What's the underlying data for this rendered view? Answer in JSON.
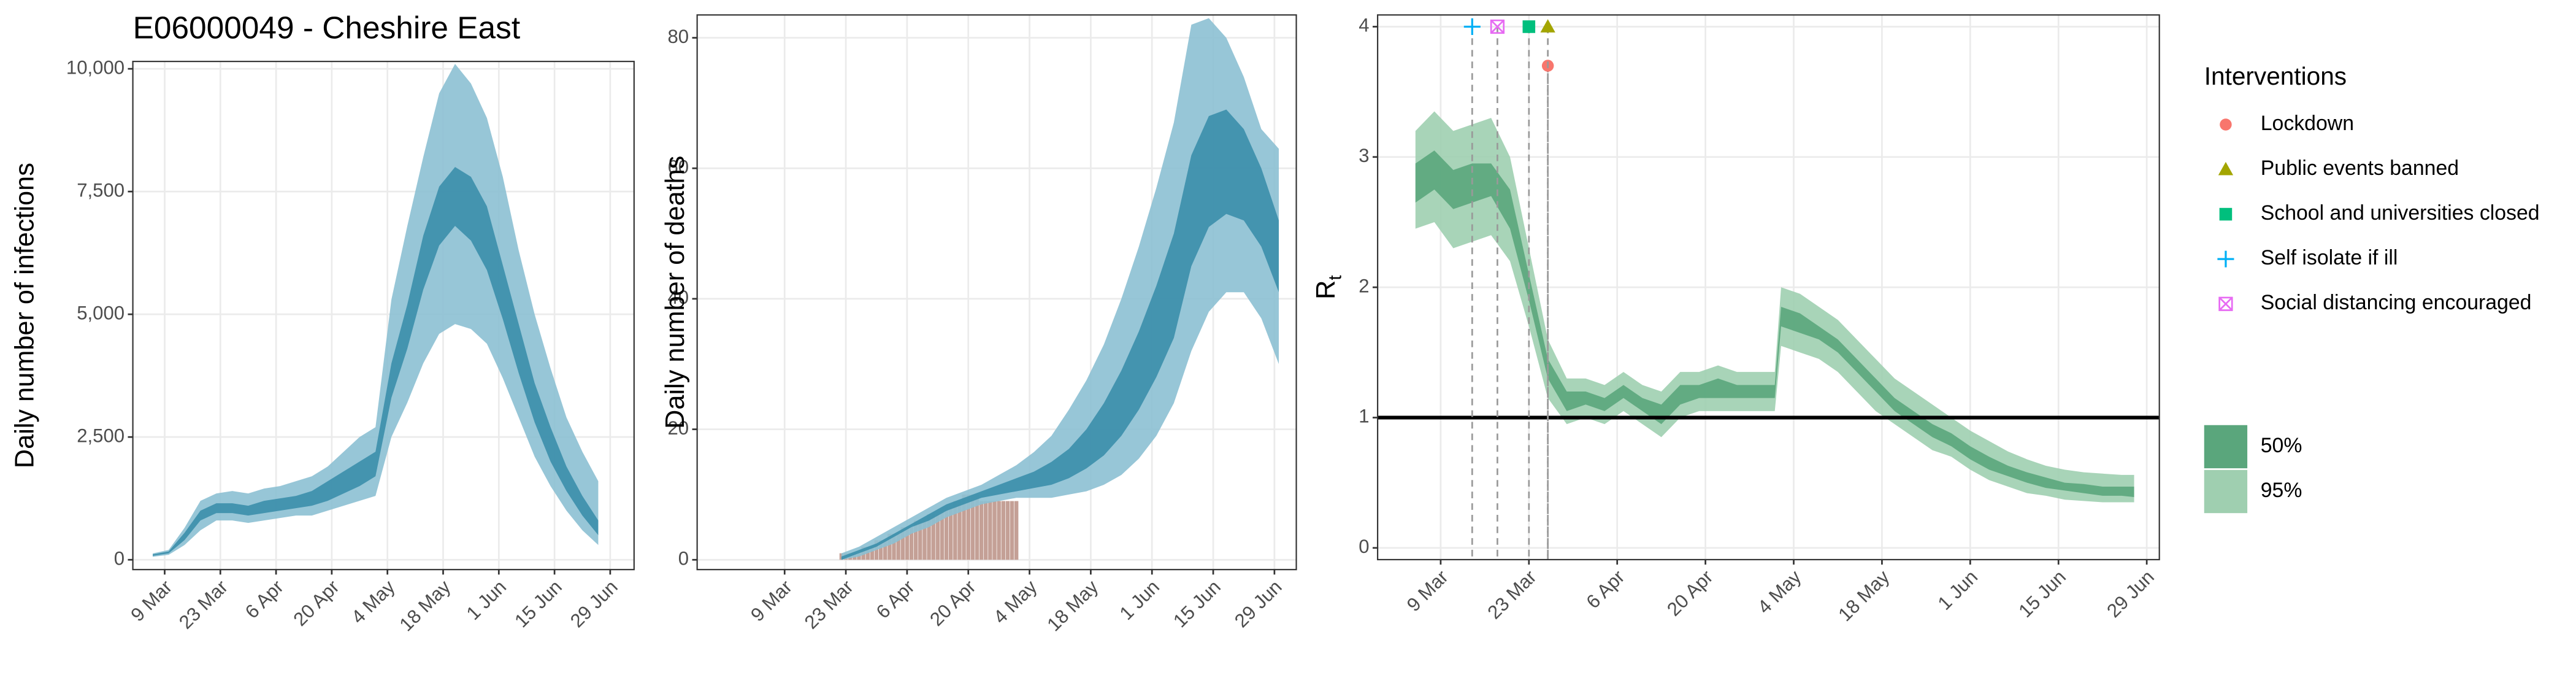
{
  "chart_data": [
    {
      "type": "ribbon",
      "title": "E06000049 - Cheshire East",
      "ylabel": "Daily number of infections",
      "x": [
        "6 Mar",
        "10 Mar",
        "14 Mar",
        "18 Mar",
        "22 Mar",
        "26 Mar",
        "30 Mar",
        "3 Apr",
        "7 Apr",
        "11 Apr",
        "15 Apr",
        "19 Apr",
        "23 Apr",
        "27 Apr",
        "1 May",
        "5 May",
        "9 May",
        "13 May",
        "17 May",
        "21 May",
        "25 May",
        "29 May",
        "2 Jun",
        "6 Jun",
        "10 Jun",
        "14 Jun",
        "18 Jun",
        "22 Jun",
        "26 Jun"
      ],
      "series": [
        {
          "color": "#8cc0d3",
          "lower": [
            60,
            100,
            300,
            600,
            800,
            800,
            750,
            800,
            850,
            900,
            900,
            1000,
            1100,
            1200,
            1300,
            2500,
            3200,
            4000,
            4600,
            4800,
            4700,
            4400,
            3700,
            2900,
            2100,
            1500,
            1000,
            600,
            300
          ],
          "upper": [
            130,
            200,
            650,
            1200,
            1350,
            1400,
            1350,
            1450,
            1500,
            1600,
            1700,
            1900,
            2200,
            2500,
            2700,
            5300,
            6800,
            8200,
            9500,
            10100,
            9700,
            9000,
            7800,
            6300,
            5000,
            3900,
            2900,
            2200,
            1600
          ]
        },
        {
          "color": "#3b8eab",
          "lower": [
            80,
            130,
            400,
            800,
            950,
            950,
            900,
            950,
            1000,
            1050,
            1100,
            1200,
            1350,
            1500,
            1700,
            3300,
            4300,
            5500,
            6400,
            6800,
            6500,
            5900,
            4900,
            3800,
            2800,
            2000,
            1400,
            900,
            500
          ],
          "upper": [
            110,
            170,
            550,
            1000,
            1150,
            1150,
            1100,
            1200,
            1250,
            1300,
            1400,
            1600,
            1800,
            2000,
            2200,
            4000,
            5200,
            6600,
            7600,
            8000,
            7800,
            7200,
            6000,
            4800,
            3600,
            2700,
            1900,
            1300,
            800
          ]
        }
      ],
      "xlim": [
        "1 Mar",
        "5 Jul"
      ],
      "xticks": [
        "9 Mar",
        "23 Mar",
        "6 Apr",
        "20 Apr",
        "4 May",
        "18 May",
        "1 Jun",
        "15 Jun",
        "29 Jun"
      ],
      "ylim": [
        -200,
        10150
      ],
      "yticks": [
        0,
        {
          "value": 2500,
          "label": "2,500"
        },
        {
          "value": 5000,
          "label": "5,000"
        },
        {
          "value": 7500,
          "label": "7,500"
        },
        {
          "value": 10000,
          "label": "10,000"
        }
      ],
      "grid": true
    },
    {
      "type": "ribbon",
      "ylabel": "Daily number of deaths",
      "x": [
        "22 Mar",
        "26 Mar",
        "30 Mar",
        "3 Apr",
        "7 Apr",
        "11 Apr",
        "15 Apr",
        "19 Apr",
        "23 Apr",
        "27 Apr",
        "1 May",
        "5 May",
        "9 May",
        "13 May",
        "17 May",
        "21 May",
        "25 May",
        "29 May",
        "2 Jun",
        "6 Jun",
        "10 Jun",
        "14 Jun",
        "18 Jun",
        "22 Jun",
        "26 Jun",
        "30 Jun"
      ],
      "series": [
        {
          "color": "#8cc0d3",
          "lower": [
            0,
            0.5,
            1.5,
            2.5,
            4,
            5,
            6.5,
            7.5,
            8.5,
            9,
            9.5,
            9.5,
            9.5,
            10,
            10.5,
            11.5,
            13,
            15.5,
            19,
            24,
            32,
            38,
            41,
            41,
            37,
            30
          ],
          "upper": [
            1,
            2,
            3.5,
            5,
            6.5,
            8,
            9.5,
            10.5,
            11.5,
            13,
            14.5,
            16.5,
            19,
            23,
            27.5,
            33,
            40,
            48,
            57,
            67,
            82,
            83,
            80,
            74,
            66,
            63
          ]
        },
        {
          "color": "#3b8eab",
          "lower": [
            0,
            1,
            2,
            3.5,
            5,
            6,
            7.5,
            8.5,
            9.5,
            10,
            10.5,
            11,
            11.5,
            12.5,
            14,
            16,
            19,
            23,
            28,
            34,
            45,
            51,
            53,
            52,
            48,
            41
          ],
          "upper": [
            0.5,
            1.5,
            2.5,
            4,
            5.5,
            7,
            8.5,
            9.5,
            10.5,
            11.5,
            12.5,
            13.5,
            15,
            17,
            20,
            24,
            29,
            35,
            42,
            50,
            62,
            68,
            69,
            66,
            60,
            52
          ]
        }
      ],
      "bars": {
        "color": "#c4a096",
        "x": [
          "21 Mar",
          "22 Mar",
          "23 Mar",
          "24 Mar",
          "25 Mar",
          "26 Mar",
          "27 Mar",
          "28 Mar",
          "29 Mar",
          "30 Mar",
          "31 Mar",
          "1 Apr",
          "2 Apr",
          "3 Apr",
          "4 Apr",
          "5 Apr",
          "6 Apr",
          "7 Apr",
          "8 Apr",
          "9 Apr",
          "10 Apr",
          "11 Apr",
          "12 Apr",
          "13 Apr",
          "14 Apr",
          "15 Apr",
          "16 Apr",
          "17 Apr",
          "18 Apr",
          "19 Apr",
          "20 Apr",
          "21 Apr",
          "22 Apr",
          "23 Apr",
          "24 Apr",
          "25 Apr",
          "26 Apr",
          "27 Apr",
          "28 Apr",
          "29 Apr",
          "30 Apr",
          "1 May"
        ],
        "values": [
          0,
          1,
          1,
          1,
          1,
          1,
          2,
          2,
          2,
          3,
          3,
          3,
          4,
          4,
          4,
          5,
          5,
          5,
          6,
          6,
          6,
          7,
          7,
          7,
          8,
          8,
          8,
          9,
          9,
          10,
          10,
          10,
          10,
          9,
          9,
          9,
          9,
          9,
          9,
          9,
          9,
          9
        ]
      },
      "xlim": [
        "18 Feb",
        "4 Jul"
      ],
      "xticks": [
        "9 Mar",
        "23 Mar",
        "6 Apr",
        "20 Apr",
        "4 May",
        "18 May",
        "1 Jun",
        "15 Jun",
        "29 Jun"
      ],
      "ylim": [
        -1.5,
        83.5
      ],
      "yticks": [
        0,
        20,
        40,
        60,
        80
      ],
      "grid": true
    },
    {
      "type": "ribbon",
      "ylabel": "R",
      "ylabel_sub": "t",
      "x": [
        "5 Mar",
        "8 Mar",
        "11 Mar",
        "14 Mar",
        "17 Mar",
        "20 Mar",
        "23 Mar",
        "26 Mar",
        "29 Mar",
        "1 Apr",
        "4 Apr",
        "7 Apr",
        "10 Apr",
        "13 Apr",
        "16 Apr",
        "19 Apr",
        "22 Apr",
        "25 Apr",
        "28 Apr",
        "1 May",
        "2 May",
        "5 May",
        "8 May",
        "11 May",
        "14 May",
        "17 May",
        "20 May",
        "23 May",
        "26 May",
        "29 May",
        "1 Jun",
        "4 Jun",
        "7 Jun",
        "10 Jun",
        "13 Jun",
        "16 Jun",
        "19 Jun",
        "22 Jun",
        "25 Jun",
        "27 Jun"
      ],
      "series": [
        {
          "name": "95%",
          "color": "#9fcfb0",
          "lower": [
            2.45,
            2.5,
            2.3,
            2.35,
            2.4,
            2.2,
            1.7,
            1.15,
            0.95,
            1.0,
            0.95,
            1.05,
            0.95,
            0.85,
            1.0,
            1.05,
            1.05,
            1.05,
            1.05,
            1.05,
            1.55,
            1.5,
            1.45,
            1.35,
            1.2,
            1.05,
            0.95,
            0.85,
            0.75,
            0.7,
            0.6,
            0.52,
            0.47,
            0.42,
            0.4,
            0.37,
            0.36,
            0.35,
            0.35,
            0.35
          ],
          "upper": [
            3.2,
            3.35,
            3.2,
            3.25,
            3.3,
            3.0,
            2.3,
            1.6,
            1.3,
            1.3,
            1.25,
            1.35,
            1.25,
            1.2,
            1.35,
            1.35,
            1.4,
            1.35,
            1.35,
            1.35,
            2.0,
            1.95,
            1.85,
            1.75,
            1.6,
            1.45,
            1.3,
            1.2,
            1.1,
            1.0,
            0.9,
            0.82,
            0.74,
            0.68,
            0.63,
            0.6,
            0.58,
            0.57,
            0.56,
            0.56
          ]
        },
        {
          "name": "50%",
          "color": "#5aa67c",
          "lower": [
            2.65,
            2.75,
            2.6,
            2.65,
            2.7,
            2.45,
            1.9,
            1.3,
            1.05,
            1.1,
            1.05,
            1.15,
            1.05,
            0.95,
            1.1,
            1.15,
            1.15,
            1.15,
            1.15,
            1.15,
            1.7,
            1.65,
            1.6,
            1.5,
            1.35,
            1.2,
            1.05,
            0.95,
            0.85,
            0.78,
            0.68,
            0.6,
            0.55,
            0.5,
            0.46,
            0.44,
            0.42,
            0.4,
            0.4,
            0.39
          ],
          "upper": [
            2.95,
            3.05,
            2.9,
            2.95,
            2.95,
            2.75,
            2.1,
            1.45,
            1.2,
            1.2,
            1.15,
            1.25,
            1.15,
            1.1,
            1.25,
            1.25,
            1.3,
            1.25,
            1.25,
            1.25,
            1.85,
            1.8,
            1.7,
            1.6,
            1.45,
            1.3,
            1.15,
            1.05,
            0.95,
            0.88,
            0.78,
            0.7,
            0.63,
            0.58,
            0.54,
            0.5,
            0.49,
            0.47,
            0.47,
            0.47
          ]
        }
      ],
      "hline": 1,
      "legend_title": "Interventions",
      "interventions": [
        {
          "name": "Lockdown",
          "date": "26 Mar",
          "y": 3.7,
          "shape": "circle",
          "color": "#F8766D"
        },
        {
          "name": "Public events banned",
          "date": "26 Mar",
          "y": 4,
          "shape": "triangle",
          "color": "#A3A500"
        },
        {
          "name": "School and universities closed",
          "date": "23 Mar",
          "y": 4,
          "shape": "square",
          "color": "#00BF7D"
        },
        {
          "name": "Self isolate if ill",
          "date": "14 Mar",
          "y": 4,
          "shape": "plus",
          "color": "#00B0F6"
        },
        {
          "name": "Social distancing encouraged",
          "date": "18 Mar",
          "y": 4,
          "shape": "boxcross",
          "color": "#E76BF3"
        }
      ],
      "xlim": [
        "28 Feb",
        "1 Jul"
      ],
      "xticks": [
        "9 Mar",
        "23 Mar",
        "6 Apr",
        "20 Apr",
        "4 May",
        "18 May",
        "1 Jun",
        "15 Jun",
        "29 Jun"
      ],
      "ylim": [
        -0.09,
        4.09
      ],
      "yticks": [
        0,
        1,
        2,
        3,
        4
      ],
      "grid": true
    }
  ]
}
